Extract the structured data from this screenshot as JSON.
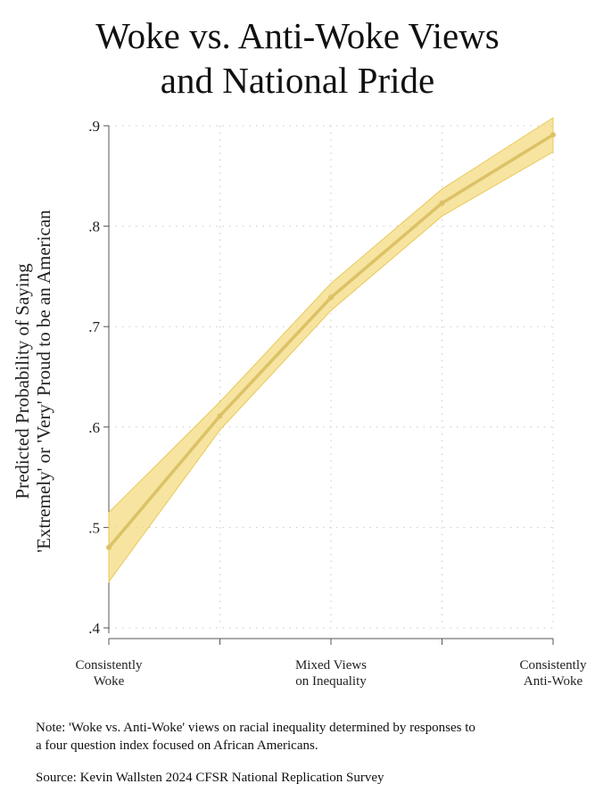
{
  "title": {
    "line1": "Woke vs. Anti-Woke Views",
    "line2": "and National Pride"
  },
  "chart_data": {
    "type": "line",
    "title": "Woke vs. Anti-Woke Views and National Pride",
    "ylabel": [
      "Predicted Probability of Saying",
      "'Extremely' or 'Very' Proud to be an American"
    ],
    "xlabel": "",
    "x": [
      0,
      1,
      2,
      3,
      4
    ],
    "xticks": [
      0,
      1,
      2,
      3,
      4
    ],
    "xtick_labels": [
      [
        "Consistently",
        "Woke"
      ],
      null,
      [
        "Mixed Views",
        "on Inequality"
      ],
      null,
      [
        "Consistently",
        "Anti-Woke"
      ]
    ],
    "xlim": [
      0,
      4
    ],
    "ylim": [
      0.4,
      0.9
    ],
    "yticks": [
      0.4,
      0.5,
      0.6,
      0.7,
      0.8,
      0.9
    ],
    "ytick_labels": [
      ".4",
      ".5",
      ".6",
      ".7",
      ".8",
      ".9"
    ],
    "grid": true,
    "series": [
      {
        "name": "Predicted probability",
        "values": [
          0.48,
          0.611,
          0.729,
          0.823,
          0.891
        ],
        "ci_lower": [
          0.446,
          0.597,
          0.716,
          0.81,
          0.874
        ],
        "ci_upper": [
          0.515,
          0.625,
          0.743,
          0.837,
          0.908
        ],
        "color": "#dcc266",
        "band_color": "#f2d878"
      }
    ]
  },
  "notes": {
    "line1": "Note: 'Woke vs. Anti-Woke' views on racial inequality determined by responses to",
    "line2": "a four question index focused on African Americans.",
    "source": "Source: Kevin Wallsten 2024 CFSR National Replication Survey"
  }
}
